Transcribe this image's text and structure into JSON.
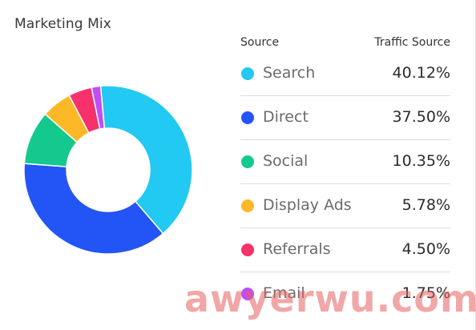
{
  "chart_data": {
    "type": "pie",
    "title": "Marketing Mix",
    "legend_header": {
      "left": "Source",
      "right": "Traffic Source"
    },
    "series": [
      {
        "label": "Search",
        "value": 40.12,
        "display": "40.12%",
        "color": "#22C9F2"
      },
      {
        "label": "Direct",
        "value": 37.5,
        "display": "37.50%",
        "color": "#2354F5"
      },
      {
        "label": "Social",
        "value": 10.35,
        "display": "10.35%",
        "color": "#14C98E"
      },
      {
        "label": "Display Ads",
        "value": 5.78,
        "display": "5.78%",
        "color": "#FDB827"
      },
      {
        "label": "Referrals",
        "value": 4.5,
        "display": "4.50%",
        "color": "#F7316A"
      },
      {
        "label": "Email",
        "value": 1.75,
        "display": "1.75%",
        "color": "#C04DF5"
      }
    ],
    "donut": true,
    "legend_position": "right"
  },
  "watermark": "awyerwu.com"
}
